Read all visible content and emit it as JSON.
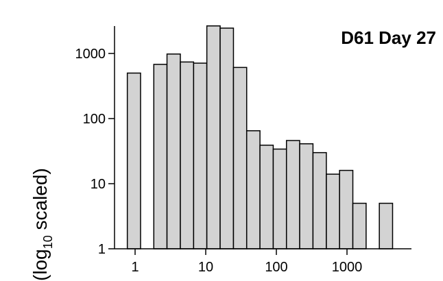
{
  "chart_data": {
    "type": "bar",
    "title": "D61 Day 27",
    "ylabel_main": "(log",
    "ylabel_sub": "10",
    "ylabel_tail": " scaled)",
    "xlabel": "",
    "x_scale": "log",
    "y_scale": "log",
    "ylim": [
      1,
      2500
    ],
    "xlim": [
      0.6,
      6000
    ],
    "x_ticks": [
      {
        "value": 1,
        "label": "1"
      },
      {
        "value": 10,
        "label": "10"
      },
      {
        "value": 100,
        "label": "100"
      },
      {
        "value": 1000,
        "label": "1000"
      }
    ],
    "y_ticks": [
      {
        "value": 1,
        "label": "1"
      },
      {
        "value": 10,
        "label": "10"
      },
      {
        "value": 100,
        "label": "100"
      },
      {
        "value": 1000,
        "label": "1000"
      }
    ],
    "grid": false,
    "bar_color": "#d3d3d3",
    "bar_edge_color": "#000000",
    "bins": [
      {
        "x0": 0.776,
        "x1": 1.195,
        "value": 500
      },
      {
        "x0": 1.84,
        "x1": 2.83,
        "value": 680
      },
      {
        "x0": 2.83,
        "x1": 4.37,
        "value": 980
      },
      {
        "x0": 4.37,
        "x1": 6.74,
        "value": 740
      },
      {
        "x0": 6.74,
        "x1": 10.37,
        "value": 710
      },
      {
        "x0": 10.37,
        "x1": 16.0,
        "value": 2650
      },
      {
        "x0": 16.0,
        "x1": 24.7,
        "value": 2450
      },
      {
        "x0": 24.7,
        "x1": 38.0,
        "value": 610
      },
      {
        "x0": 38.0,
        "x1": 58.6,
        "value": 65
      },
      {
        "x0": 58.6,
        "x1": 90.3,
        "value": 39
      },
      {
        "x0": 90.3,
        "x1": 139.0,
        "value": 34
      },
      {
        "x0": 139.0,
        "x1": 214.0,
        "value": 46
      },
      {
        "x0": 214.0,
        "x1": 330.0,
        "value": 41
      },
      {
        "x0": 330.0,
        "x1": 510.0,
        "value": 30
      },
      {
        "x0": 510.0,
        "x1": 785.0,
        "value": 14
      },
      {
        "x0": 785.0,
        "x1": 1210.0,
        "value": 16
      },
      {
        "x0": 1210.0,
        "x1": 1865.0,
        "value": 5
      },
      {
        "x0": 2870.0,
        "x1": 4420.0,
        "value": 5
      }
    ]
  }
}
